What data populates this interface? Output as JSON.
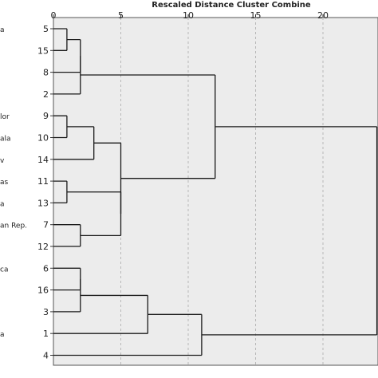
{
  "chart_data": {
    "type": "dendrogram",
    "title": "",
    "xlabel": "Rescaled Distance Cluster Combine",
    "ylabel": "",
    "x_ticks": [
      0,
      5,
      10,
      15,
      20
    ],
    "xlim": [
      0,
      24
    ],
    "leaves": [
      {
        "id": "5",
        "country_fragment": "a"
      },
      {
        "id": "15",
        "country_fragment": ""
      },
      {
        "id": "8",
        "country_fragment": ""
      },
      {
        "id": "2",
        "country_fragment": ""
      },
      {
        "id": "9",
        "country_fragment": "lor"
      },
      {
        "id": "10",
        "country_fragment": "ala"
      },
      {
        "id": "14",
        "country_fragment": "v"
      },
      {
        "id": "11",
        "country_fragment": "as"
      },
      {
        "id": "13",
        "country_fragment": "a"
      },
      {
        "id": "7",
        "country_fragment": "an Rep."
      },
      {
        "id": "12",
        "country_fragment": ""
      },
      {
        "id": "6",
        "country_fragment": "ca"
      },
      {
        "id": "16",
        "country_fragment": ""
      },
      {
        "id": "3",
        "country_fragment": ""
      },
      {
        "id": "1",
        "country_fragment": "a"
      },
      {
        "id": "4",
        "country_fragment": ""
      }
    ],
    "merges": [
      {
        "node": "A",
        "left": 0,
        "right": 1,
        "distance": 1
      },
      {
        "node": "B",
        "left": "A",
        "right": 2,
        "distance": 2
      },
      {
        "node": "C",
        "left": "B",
        "right": 3,
        "distance": 2
      },
      {
        "node": "D",
        "left": 4,
        "right": 5,
        "distance": 1
      },
      {
        "node": "E",
        "left": "D",
        "right": 6,
        "distance": 3
      },
      {
        "node": "F",
        "left": 7,
        "right": 8,
        "distance": 1
      },
      {
        "node": "G",
        "left": 9,
        "right": 10,
        "distance": 2
      },
      {
        "node": "H",
        "left": "F",
        "right": "G",
        "distance": 5
      },
      {
        "node": "I",
        "left": "E",
        "right": "H",
        "distance": 5
      },
      {
        "node": "J",
        "left": "C",
        "right": "I",
        "distance": 12
      },
      {
        "node": "K",
        "left": 11,
        "right": 12,
        "distance": 2
      },
      {
        "node": "L",
        "left": "K",
        "right": 13,
        "distance": 2
      },
      {
        "node": "M",
        "left": "L",
        "right": 14,
        "distance": 7
      },
      {
        "node": "N",
        "left": "M",
        "right": 15,
        "distance": 11
      },
      {
        "node": "ROOT",
        "left": "J",
        "right": "N",
        "distance": 24
      }
    ],
    "grid": "vertical dashed at ticks",
    "colors": {
      "plot_bg": "#ececec",
      "line": "#1a1a1a",
      "grid": "#b8b8b8"
    }
  }
}
